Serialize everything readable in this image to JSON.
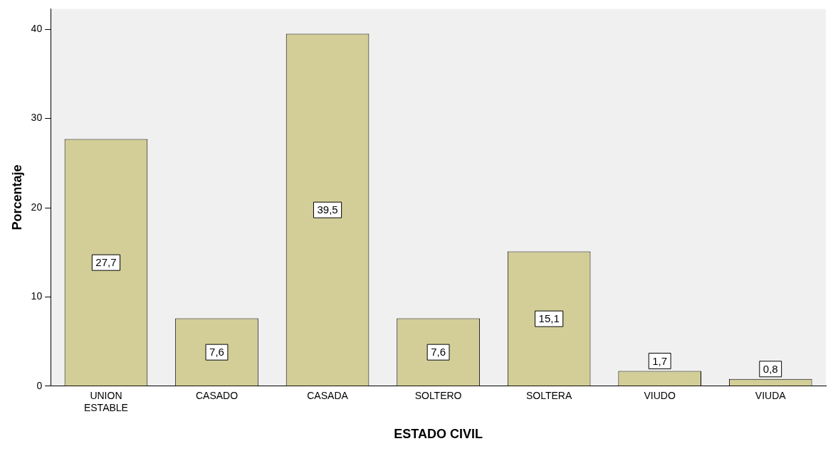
{
  "chart_data": {
    "type": "bar",
    "xlabel": "ESTADO CIVIL",
    "ylabel": "Porcentaje",
    "categories": [
      "UNION ESTABLE",
      "CASADO",
      "CASADA",
      "SOLTERO",
      "SOLTERA",
      "VIUDO",
      "VIUDA"
    ],
    "values": [
      27.7,
      7.6,
      39.5,
      7.6,
      15.1,
      1.7,
      0.8
    ],
    "value_labels": [
      "27,7",
      "7,6",
      "39,5",
      "7,6",
      "15,1",
      "1,7",
      "0,8"
    ],
    "color": "#d3ce97",
    "ylim": [
      0,
      42.3
    ],
    "yticks": [
      0,
      10,
      20,
      30,
      40
    ],
    "grid": false,
    "legend": false
  }
}
